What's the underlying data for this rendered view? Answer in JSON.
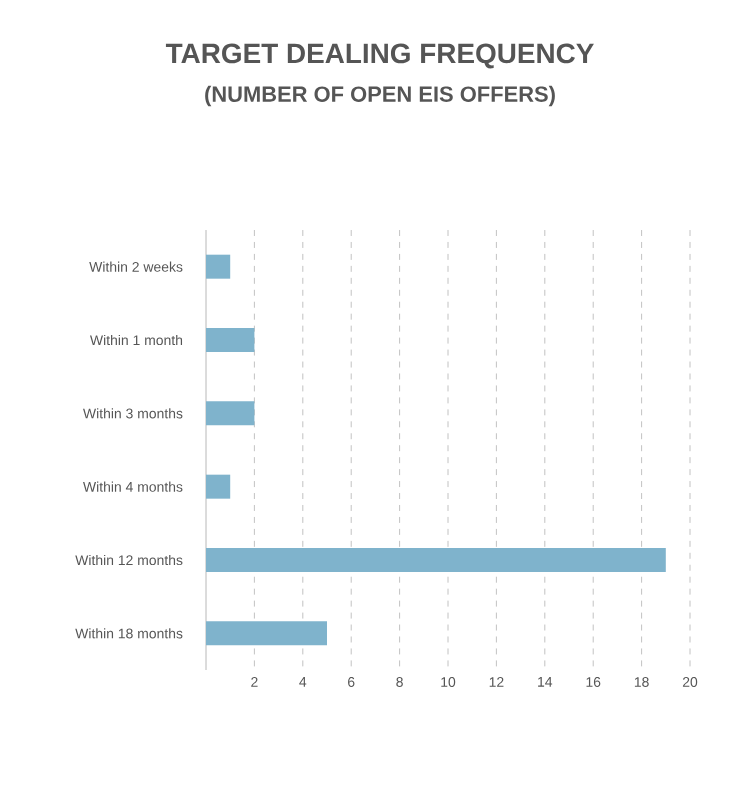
{
  "chart_data": {
    "type": "bar",
    "orientation": "horizontal",
    "title": "TARGET DEALING FREQUENCY",
    "subtitle": "(NUMBER OF OPEN EIS OFFERS)",
    "categories": [
      "Within 2 weeks",
      "Within 1 month",
      "Within 3 months",
      "Within 4 months",
      "Within 12 months",
      "Within 18 months"
    ],
    "values": [
      1,
      2,
      2,
      1,
      19,
      5
    ],
    "color": "#7fb3cc",
    "xlim": [
      0,
      20
    ],
    "xticks": [
      2,
      4,
      6,
      8,
      10,
      12,
      14,
      16,
      18,
      20
    ],
    "grid": "x"
  }
}
